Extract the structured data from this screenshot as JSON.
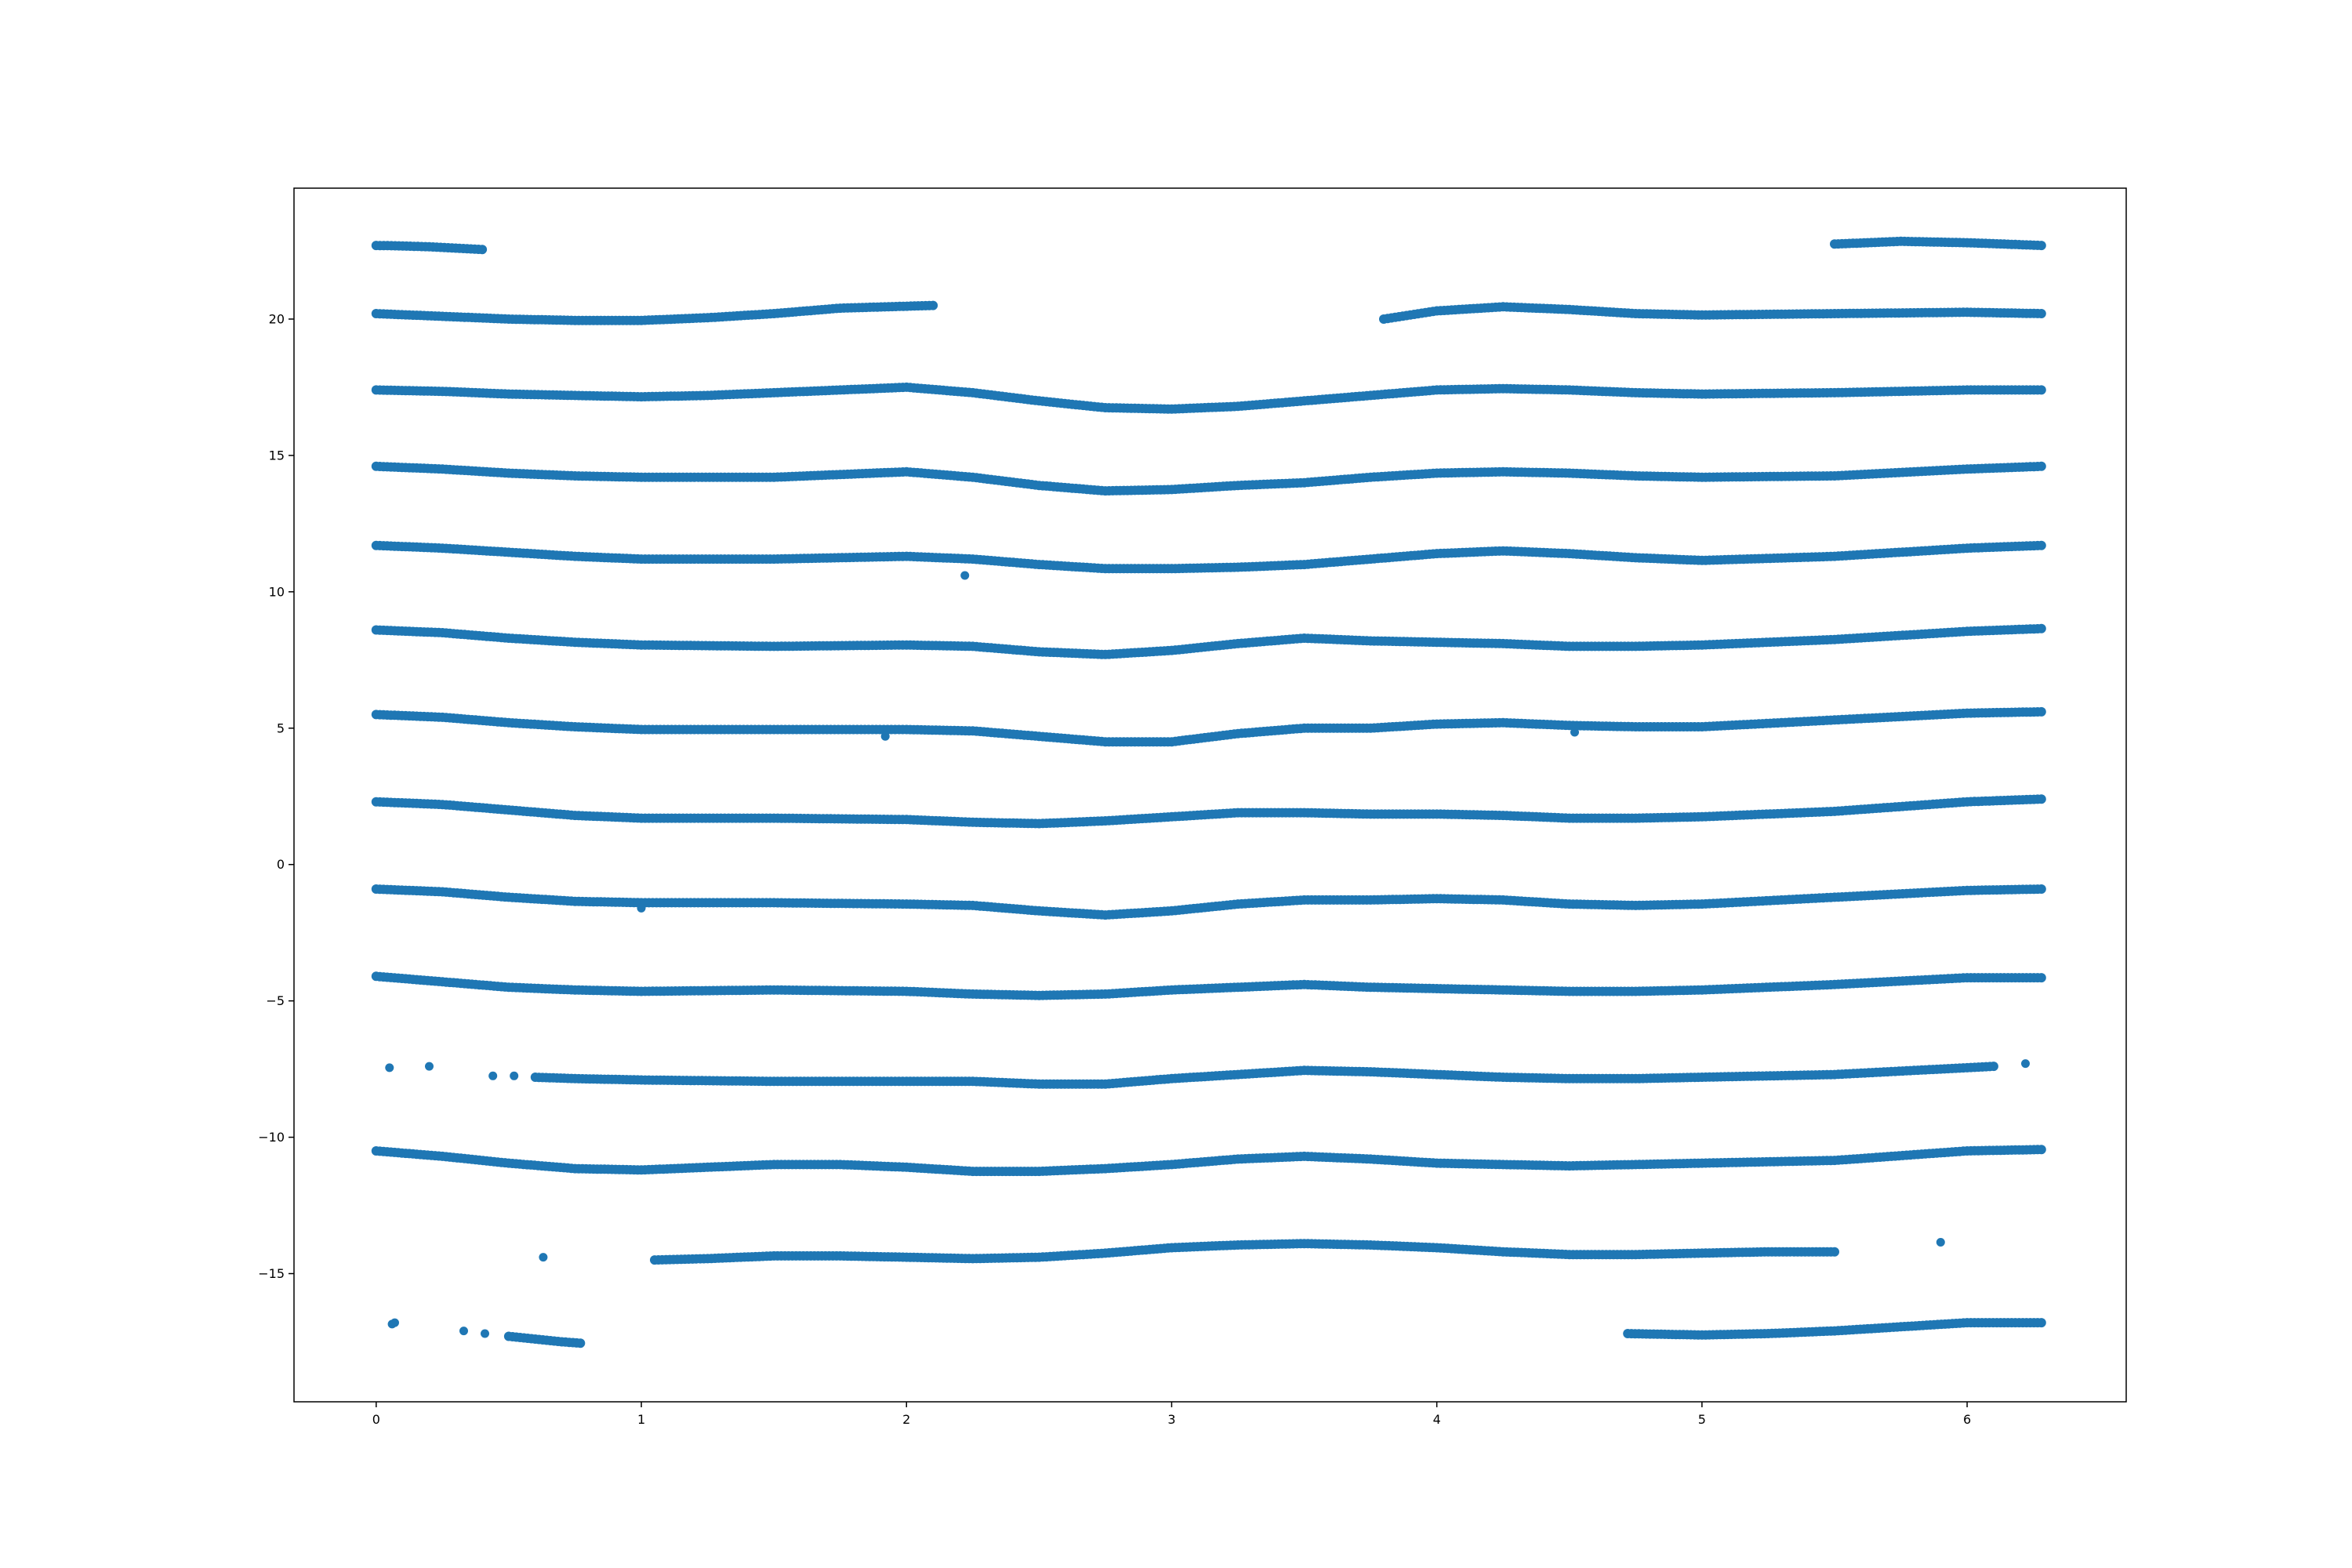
{
  "chart_data": {
    "type": "scatter",
    "title": "",
    "xlabel": "",
    "ylabel": "",
    "xlim": [
      -0.31,
      6.6
    ],
    "ylim": [
      -19.7,
      24.8
    ],
    "xticks": [
      0,
      1,
      2,
      3,
      4,
      5,
      6
    ],
    "yticks": [
      -15,
      -10,
      -5,
      0,
      5,
      10,
      15,
      20
    ],
    "xtick_labels": [
      "0",
      "1",
      "2",
      "3",
      "4",
      "5",
      "6"
    ],
    "ytick_labels": [
      "−15",
      "−10",
      "−5",
      "0",
      "5",
      "10",
      "15",
      "20"
    ],
    "grid": false,
    "legend": "none",
    "marker_color": "#1f77b4",
    "series": [
      {
        "points": [
          [
            0.0,
            22.7
          ],
          [
            0.1,
            22.68
          ],
          [
            0.2,
            22.65
          ],
          [
            0.3,
            22.6
          ],
          [
            0.4,
            22.55
          ]
        ]
      },
      {
        "points": [
          [
            0.0,
            20.2
          ],
          [
            0.25,
            20.1
          ],
          [
            0.5,
            20.0
          ],
          [
            0.75,
            19.95
          ],
          [
            1.0,
            19.95
          ],
          [
            1.25,
            20.05
          ],
          [
            1.5,
            20.2
          ],
          [
            1.75,
            20.4
          ],
          [
            2.1,
            20.5
          ]
        ]
      },
      {
        "points": [
          [
            3.8,
            20.0
          ],
          [
            4.0,
            20.3
          ],
          [
            4.25,
            20.45
          ],
          [
            4.5,
            20.35
          ],
          [
            4.75,
            20.2
          ],
          [
            5.0,
            20.15
          ],
          [
            5.5,
            20.2
          ],
          [
            6.0,
            20.25
          ],
          [
            6.28,
            20.2
          ]
        ]
      },
      {
        "points": [
          [
            5.5,
            22.75
          ],
          [
            5.75,
            22.85
          ],
          [
            6.0,
            22.8
          ],
          [
            6.28,
            22.7
          ]
        ]
      },
      {
        "points": [
          [
            0.0,
            17.4
          ],
          [
            0.25,
            17.35
          ],
          [
            0.5,
            17.25
          ],
          [
            0.75,
            17.2
          ],
          [
            1.0,
            17.15
          ],
          [
            1.25,
            17.2
          ],
          [
            1.5,
            17.3
          ],
          [
            1.75,
            17.4
          ],
          [
            2.0,
            17.5
          ],
          [
            2.25,
            17.3
          ],
          [
            2.5,
            17.0
          ],
          [
            2.75,
            16.75
          ],
          [
            3.0,
            16.7
          ],
          [
            3.25,
            16.8
          ],
          [
            3.5,
            17.0
          ],
          [
            3.75,
            17.2
          ],
          [
            4.0,
            17.4
          ],
          [
            4.25,
            17.45
          ],
          [
            4.5,
            17.4
          ],
          [
            4.75,
            17.3
          ],
          [
            5.0,
            17.25
          ],
          [
            5.5,
            17.3
          ],
          [
            6.0,
            17.4
          ],
          [
            6.28,
            17.4
          ]
        ]
      },
      {
        "points": [
          [
            0.0,
            14.6
          ],
          [
            0.25,
            14.5
          ],
          [
            0.5,
            14.35
          ],
          [
            0.75,
            14.25
          ],
          [
            1.0,
            14.2
          ],
          [
            1.5,
            14.2
          ],
          [
            1.75,
            14.3
          ],
          [
            2.0,
            14.4
          ],
          [
            2.25,
            14.2
          ],
          [
            2.5,
            13.9
          ],
          [
            2.75,
            13.7
          ],
          [
            3.0,
            13.75
          ],
          [
            3.25,
            13.9
          ],
          [
            3.5,
            14.0
          ],
          [
            3.75,
            14.2
          ],
          [
            4.0,
            14.35
          ],
          [
            4.25,
            14.4
          ],
          [
            4.5,
            14.35
          ],
          [
            4.75,
            14.25
          ],
          [
            5.0,
            14.2
          ],
          [
            5.5,
            14.25
          ],
          [
            6.0,
            14.5
          ],
          [
            6.28,
            14.6
          ]
        ]
      },
      {
        "points": [
          [
            0.0,
            11.7
          ],
          [
            0.25,
            11.6
          ],
          [
            0.5,
            11.45
          ],
          [
            0.75,
            11.3
          ],
          [
            1.0,
            11.2
          ],
          [
            1.5,
            11.2
          ],
          [
            2.0,
            11.3
          ],
          [
            2.25,
            11.2
          ],
          [
            2.5,
            11.0
          ],
          [
            2.75,
            10.85
          ],
          [
            3.0,
            10.85
          ],
          [
            3.25,
            10.9
          ],
          [
            3.5,
            11.0
          ],
          [
            3.75,
            11.2
          ],
          [
            4.0,
            11.4
          ],
          [
            4.25,
            11.5
          ],
          [
            4.5,
            11.4
          ],
          [
            4.75,
            11.25
          ],
          [
            5.0,
            11.15
          ],
          [
            5.5,
            11.3
          ],
          [
            6.0,
            11.6
          ],
          [
            6.28,
            11.7
          ]
        ]
      },
      {
        "points": [
          [
            0.0,
            8.6
          ],
          [
            0.25,
            8.5
          ],
          [
            0.5,
            8.3
          ],
          [
            0.75,
            8.15
          ],
          [
            1.0,
            8.05
          ],
          [
            1.5,
            8.0
          ],
          [
            2.0,
            8.05
          ],
          [
            2.25,
            8.0
          ],
          [
            2.5,
            7.8
          ],
          [
            2.75,
            7.7
          ],
          [
            3.0,
            7.85
          ],
          [
            3.25,
            8.1
          ],
          [
            3.5,
            8.3
          ],
          [
            3.75,
            8.2
          ],
          [
            4.0,
            8.15
          ],
          [
            4.25,
            8.1
          ],
          [
            4.5,
            8.0
          ],
          [
            4.75,
            8.0
          ],
          [
            5.0,
            8.05
          ],
          [
            5.5,
            8.25
          ],
          [
            6.0,
            8.55
          ],
          [
            6.28,
            8.65
          ]
        ]
      },
      {
        "points": [
          [
            0.0,
            5.5
          ],
          [
            0.25,
            5.4
          ],
          [
            0.5,
            5.2
          ],
          [
            0.75,
            5.05
          ],
          [
            1.0,
            4.95
          ],
          [
            1.5,
            4.95
          ],
          [
            2.0,
            4.95
          ],
          [
            2.25,
            4.9
          ],
          [
            2.5,
            4.7
          ],
          [
            2.75,
            4.5
          ],
          [
            3.0,
            4.5
          ],
          [
            3.25,
            4.8
          ],
          [
            3.5,
            5.0
          ],
          [
            3.75,
            5.0
          ],
          [
            4.0,
            5.15
          ],
          [
            4.25,
            5.2
          ],
          [
            4.5,
            5.1
          ],
          [
            4.75,
            5.05
          ],
          [
            5.0,
            5.05
          ],
          [
            5.5,
            5.3
          ],
          [
            6.0,
            5.55
          ],
          [
            6.28,
            5.6
          ]
        ]
      },
      {
        "points": [
          [
            0.0,
            2.3
          ],
          [
            0.25,
            2.2
          ],
          [
            0.5,
            2.0
          ],
          [
            0.75,
            1.8
          ],
          [
            1.0,
            1.7
          ],
          [
            1.5,
            1.7
          ],
          [
            2.0,
            1.65
          ],
          [
            2.25,
            1.55
          ],
          [
            2.5,
            1.5
          ],
          [
            2.75,
            1.6
          ],
          [
            3.0,
            1.75
          ],
          [
            3.25,
            1.9
          ],
          [
            3.5,
            1.9
          ],
          [
            3.75,
            1.85
          ],
          [
            4.0,
            1.85
          ],
          [
            4.25,
            1.8
          ],
          [
            4.5,
            1.7
          ],
          [
            4.75,
            1.7
          ],
          [
            5.0,
            1.75
          ],
          [
            5.5,
            1.95
          ],
          [
            6.0,
            2.3
          ],
          [
            6.28,
            2.4
          ]
        ]
      },
      {
        "points": [
          [
            0.0,
            -0.9
          ],
          [
            0.25,
            -1.0
          ],
          [
            0.5,
            -1.2
          ],
          [
            0.75,
            -1.35
          ],
          [
            1.0,
            -1.4
          ],
          [
            1.5,
            -1.4
          ],
          [
            2.0,
            -1.45
          ],
          [
            2.25,
            -1.5
          ],
          [
            2.5,
            -1.7
          ],
          [
            2.75,
            -1.85
          ],
          [
            3.0,
            -1.7
          ],
          [
            3.25,
            -1.45
          ],
          [
            3.5,
            -1.3
          ],
          [
            3.75,
            -1.3
          ],
          [
            4.0,
            -1.25
          ],
          [
            4.25,
            -1.3
          ],
          [
            4.5,
            -1.45
          ],
          [
            4.75,
            -1.5
          ],
          [
            5.0,
            -1.45
          ],
          [
            5.5,
            -1.2
          ],
          [
            6.0,
            -0.95
          ],
          [
            6.28,
            -0.9
          ]
        ]
      },
      {
        "points": [
          [
            0.0,
            -4.1
          ],
          [
            0.25,
            -4.3
          ],
          [
            0.5,
            -4.5
          ],
          [
            0.75,
            -4.6
          ],
          [
            1.0,
            -4.65
          ],
          [
            1.5,
            -4.6
          ],
          [
            2.0,
            -4.65
          ],
          [
            2.25,
            -4.75
          ],
          [
            2.5,
            -4.8
          ],
          [
            2.75,
            -4.75
          ],
          [
            3.0,
            -4.6
          ],
          [
            3.25,
            -4.5
          ],
          [
            3.5,
            -4.4
          ],
          [
            3.75,
            -4.5
          ],
          [
            4.0,
            -4.55
          ],
          [
            4.25,
            -4.6
          ],
          [
            4.5,
            -4.65
          ],
          [
            4.75,
            -4.65
          ],
          [
            5.0,
            -4.6
          ],
          [
            5.5,
            -4.4
          ],
          [
            6.0,
            -4.15
          ],
          [
            6.28,
            -4.15
          ]
        ]
      },
      {
        "points": [
          [
            0.6,
            -7.8
          ],
          [
            0.75,
            -7.85
          ],
          [
            1.0,
            -7.9
          ],
          [
            1.5,
            -7.95
          ],
          [
            2.0,
            -7.95
          ],
          [
            2.25,
            -7.95
          ],
          [
            2.5,
            -8.05
          ],
          [
            2.75,
            -8.05
          ],
          [
            3.0,
            -7.85
          ],
          [
            3.25,
            -7.7
          ],
          [
            3.5,
            -7.55
          ],
          [
            3.75,
            -7.6
          ],
          [
            4.0,
            -7.7
          ],
          [
            4.25,
            -7.8
          ],
          [
            4.5,
            -7.85
          ],
          [
            4.75,
            -7.85
          ],
          [
            5.0,
            -7.8
          ],
          [
            5.5,
            -7.7
          ],
          [
            6.0,
            -7.45
          ],
          [
            6.1,
            -7.4
          ]
        ]
      },
      {
        "points": [
          [
            0.0,
            -10.5
          ],
          [
            0.25,
            -10.7
          ],
          [
            0.5,
            -10.95
          ],
          [
            0.75,
            -11.15
          ],
          [
            1.0,
            -11.2
          ],
          [
            1.25,
            -11.1
          ],
          [
            1.5,
            -11.0
          ],
          [
            1.75,
            -11.0
          ],
          [
            2.0,
            -11.1
          ],
          [
            2.25,
            -11.25
          ],
          [
            2.5,
            -11.25
          ],
          [
            2.75,
            -11.15
          ],
          [
            3.0,
            -11.0
          ],
          [
            3.25,
            -10.8
          ],
          [
            3.5,
            -10.7
          ],
          [
            3.75,
            -10.8
          ],
          [
            4.0,
            -10.95
          ],
          [
            4.25,
            -11.0
          ],
          [
            4.5,
            -11.05
          ],
          [
            4.75,
            -11.0
          ],
          [
            5.0,
            -10.95
          ],
          [
            5.5,
            -10.85
          ],
          [
            6.0,
            -10.5
          ],
          [
            6.28,
            -10.45
          ]
        ]
      },
      {
        "points": [
          [
            1.05,
            -14.5
          ],
          [
            1.25,
            -14.45
          ],
          [
            1.5,
            -14.35
          ],
          [
            1.75,
            -14.35
          ],
          [
            2.0,
            -14.4
          ],
          [
            2.25,
            -14.45
          ],
          [
            2.5,
            -14.4
          ],
          [
            2.75,
            -14.25
          ],
          [
            3.0,
            -14.05
          ],
          [
            3.25,
            -13.95
          ],
          [
            3.5,
            -13.9
          ],
          [
            3.75,
            -13.95
          ],
          [
            4.0,
            -14.05
          ],
          [
            4.25,
            -14.2
          ],
          [
            4.5,
            -14.3
          ],
          [
            4.75,
            -14.3
          ],
          [
            5.0,
            -14.25
          ],
          [
            5.25,
            -14.2
          ],
          [
            5.5,
            -14.2
          ]
        ]
      },
      {
        "points": [
          [
            0.5,
            -17.3
          ],
          [
            0.6,
            -17.4
          ],
          [
            0.7,
            -17.5
          ],
          [
            0.77,
            -17.55
          ]
        ]
      },
      {
        "points": [
          [
            4.72,
            -17.2
          ],
          [
            5.0,
            -17.25
          ],
          [
            5.25,
            -17.2
          ],
          [
            5.5,
            -17.1
          ],
          [
            5.75,
            -16.95
          ],
          [
            6.0,
            -16.8
          ],
          [
            6.28,
            -16.8
          ]
        ]
      },
      {
        "points": [
          [
            0.05,
            -7.45
          ],
          [
            0.2,
            -7.4
          ],
          [
            0.44,
            -7.75
          ],
          [
            0.52,
            -7.75
          ],
          [
            0.63,
            -14.4
          ],
          [
            0.06,
            -16.85
          ],
          [
            0.07,
            -16.8
          ],
          [
            0.33,
            -17.1
          ],
          [
            0.41,
            -17.2
          ],
          [
            5.9,
            -13.85
          ],
          [
            6.22,
            -7.3
          ],
          [
            2.22,
            10.6
          ],
          [
            1.92,
            4.7
          ],
          [
            1.0,
            -1.6
          ],
          [
            4.52,
            4.85
          ]
        ]
      }
    ]
  }
}
